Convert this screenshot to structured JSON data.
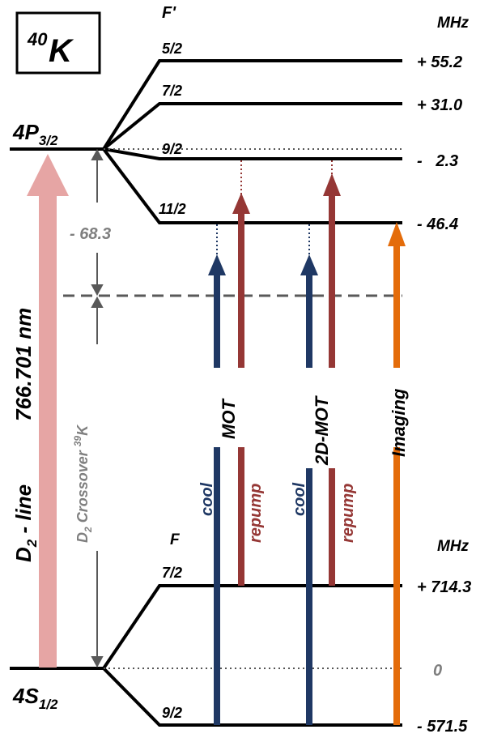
{
  "title": {
    "mass": "40",
    "symbol": "K"
  },
  "upper": {
    "state": "4P",
    "state_sub": "3/2",
    "f_header": "F'",
    "mhz_header": "MHz",
    "levels": [
      {
        "f": "5/2",
        "mhz": "+ 55.2"
      },
      {
        "f": "7/2",
        "mhz": "+ 31.0"
      },
      {
        "f": "9/2",
        "mhz": "-   2.3"
      },
      {
        "f": "11/2",
        "mhz": "- 46.4"
      }
    ]
  },
  "lower": {
    "state": "4S",
    "state_sub": "1/2",
    "f_header": "F",
    "mhz_header": "MHz",
    "levels": [
      {
        "f": "7/2",
        "mhz": "+ 714.3"
      },
      {
        "f": "9/2",
        "mhz": "- 571.5"
      }
    ],
    "center_mhz": "0"
  },
  "crossover": {
    "value": "- 68.3",
    "label": "D",
    "label_sub": "2",
    "label_rest": "Crossover ",
    "label_sup": "39",
    "label_end": "K"
  },
  "d2_line": {
    "label": "D",
    "label_sub": "2",
    "label_rest": " - line",
    "wavelength": "766.701 nm"
  },
  "beams": {
    "mot": "MOT",
    "mot_2d": "2D-MOT",
    "imaging": "Imaging",
    "cool": "cool",
    "repump": "repump"
  },
  "colors": {
    "cool": "#1f3864",
    "repump": "#953735",
    "imaging": "#e46c0a",
    "d2": "#e6a5a4",
    "grey": "#7f7f7f"
  }
}
